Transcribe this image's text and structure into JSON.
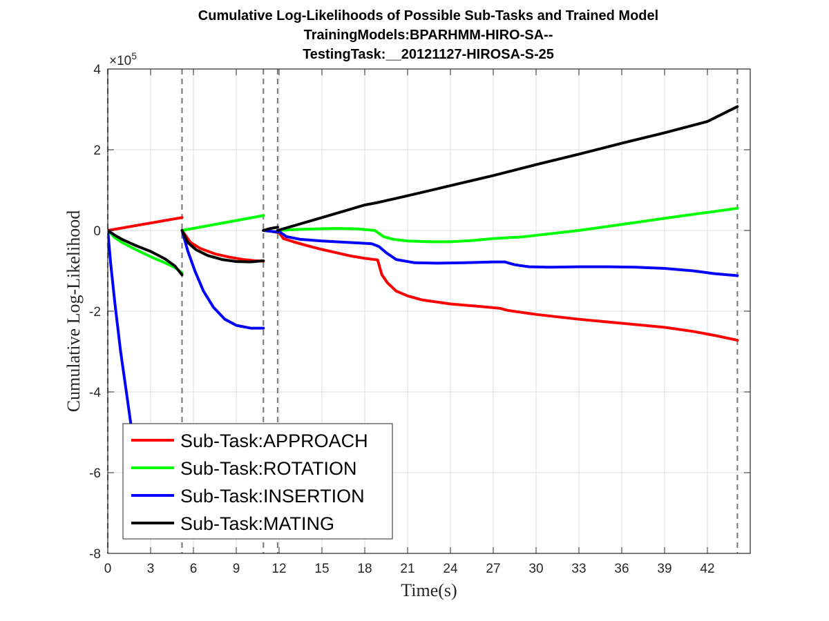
{
  "chart_data": {
    "type": "line",
    "title_lines": [
      "Cumulative Log-Likelihoods of Possible Sub-Tasks and Trained Model",
      "TrainingModels:BPARHMM-HIRO-SA--",
      "TestingTask:__20121127-HIROSA-S-25"
    ],
    "xlabel": "Time(s)",
    "ylabel": "Cumulative Log-Likelihood",
    "y_exponent_label": "×10",
    "y_exponent_power": "5",
    "xlim": [
      0,
      45
    ],
    "ylim": [
      -8,
      4
    ],
    "x_ticks": [
      0,
      3,
      6,
      9,
      12,
      15,
      18,
      21,
      24,
      27,
      30,
      33,
      36,
      39,
      42
    ],
    "x_tick_labels": [
      "0",
      "3",
      "6",
      "9",
      "12",
      "15",
      "18",
      "21",
      "24",
      "27",
      "30",
      "33",
      "36",
      "39",
      "42"
    ],
    "y_ticks": [
      -8,
      -6,
      -4,
      -2,
      0,
      2,
      4
    ],
    "y_tick_labels": [
      "-8",
      "-6",
      "-4",
      "-2",
      "0",
      "2",
      "4"
    ],
    "grid": true,
    "legend_placement": "bottom-left",
    "segment_boundaries": [
      0,
      5.2,
      10.9,
      11.9,
      44.1
    ],
    "series": [
      {
        "name": "Sub-Task:APPROACH",
        "color": "#ff0000",
        "segments": [
          [
            [
              0,
              0
            ],
            [
              5.2,
              0.32
            ]
          ],
          [
            [
              5.2,
              0
            ],
            [
              5.8,
              -0.3
            ],
            [
              6.5,
              -0.45
            ],
            [
              7.5,
              -0.58
            ],
            [
              8.5,
              -0.66
            ],
            [
              9.5,
              -0.72
            ],
            [
              10.3,
              -0.75
            ],
            [
              10.9,
              -0.76
            ]
          ],
          [
            [
              10.9,
              0
            ],
            [
              11.4,
              -0.02
            ],
            [
              11.9,
              -0.05
            ]
          ],
          [
            [
              11.9,
              0
            ],
            [
              12.3,
              -0.2
            ],
            [
              13,
              -0.28
            ],
            [
              14,
              -0.38
            ],
            [
              15,
              -0.47
            ],
            [
              16,
              -0.55
            ],
            [
              17,
              -0.63
            ],
            [
              18,
              -0.69
            ],
            [
              18.9,
              -0.73
            ],
            [
              19.2,
              -1.1
            ],
            [
              19.6,
              -1.3
            ],
            [
              20.2,
              -1.5
            ],
            [
              21,
              -1.62
            ],
            [
              22,
              -1.72
            ],
            [
              24,
              -1.82
            ],
            [
              26,
              -1.88
            ],
            [
              27.5,
              -1.93
            ],
            [
              28,
              -1.98
            ],
            [
              30,
              -2.08
            ],
            [
              33,
              -2.2
            ],
            [
              36,
              -2.3
            ],
            [
              39,
              -2.4
            ],
            [
              41,
              -2.5
            ],
            [
              42.5,
              -2.6
            ],
            [
              44.1,
              -2.72
            ]
          ]
        ]
      },
      {
        "name": "Sub-Task:ROTATION",
        "color": "#00ff00",
        "segments": [
          [
            [
              0,
              0
            ],
            [
              0.5,
              -0.18
            ],
            [
              1,
              -0.3
            ],
            [
              2,
              -0.48
            ],
            [
              3,
              -0.65
            ],
            [
              4,
              -0.8
            ],
            [
              4.7,
              -0.92
            ],
            [
              5.2,
              -1.05
            ]
          ],
          [
            [
              5.2,
              0
            ],
            [
              10.9,
              0.37
            ]
          ],
          [
            [
              10.9,
              0
            ],
            [
              11.4,
              -0.02
            ],
            [
              11.9,
              -0.04
            ]
          ],
          [
            [
              11.9,
              0
            ],
            [
              13,
              0.02
            ],
            [
              14.5,
              0.04
            ],
            [
              16,
              0.05
            ],
            [
              17.5,
              0.04
            ],
            [
              18.7,
              0.0
            ],
            [
              19.3,
              -0.15
            ],
            [
              20,
              -0.22
            ],
            [
              21,
              -0.26
            ],
            [
              22.5,
              -0.28
            ],
            [
              24,
              -0.28
            ],
            [
              25.5,
              -0.25
            ],
            [
              27,
              -0.2
            ],
            [
              28,
              -0.18
            ],
            [
              29,
              -0.16
            ],
            [
              31,
              -0.08
            ],
            [
              33,
              0.0
            ],
            [
              35,
              0.1
            ],
            [
              37,
              0.2
            ],
            [
              39,
              0.3
            ],
            [
              41,
              0.4
            ],
            [
              42.5,
              0.47
            ],
            [
              44.1,
              0.55
            ]
          ]
        ]
      },
      {
        "name": "Sub-Task:INSERTION",
        "color": "#0000ff",
        "segments": [
          [
            [
              0,
              0
            ],
            [
              0.2,
              -0.8
            ],
            [
              0.5,
              -1.8
            ],
            [
              0.9,
              -3.0
            ],
            [
              1.3,
              -4.0
            ],
            [
              1.7,
              -5.0
            ],
            [
              2.1,
              -6.0
            ],
            [
              2.4,
              -6.7
            ]
          ],
          [
            [
              5.2,
              0
            ],
            [
              5.6,
              -0.5
            ],
            [
              6.1,
              -1.0
            ],
            [
              6.7,
              -1.5
            ],
            [
              7.4,
              -1.9
            ],
            [
              8.2,
              -2.2
            ],
            [
              9,
              -2.35
            ],
            [
              10,
              -2.42
            ],
            [
              10.9,
              -2.42
            ]
          ],
          [
            [
              10.9,
              0
            ],
            [
              11.4,
              -0.02
            ],
            [
              11.9,
              -0.04
            ]
          ],
          [
            [
              11.9,
              0
            ],
            [
              12.5,
              -0.15
            ],
            [
              13.5,
              -0.22
            ],
            [
              15,
              -0.26
            ],
            [
              17,
              -0.3
            ],
            [
              18.5,
              -0.33
            ],
            [
              19,
              -0.4
            ],
            [
              19.5,
              -0.55
            ],
            [
              20.2,
              -0.72
            ],
            [
              21.5,
              -0.8
            ],
            [
              23,
              -0.81
            ],
            [
              25,
              -0.8
            ],
            [
              27,
              -0.78
            ],
            [
              27.8,
              -0.78
            ],
            [
              28.5,
              -0.85
            ],
            [
              29.5,
              -0.9
            ],
            [
              31,
              -0.91
            ],
            [
              33,
              -0.9
            ],
            [
              35,
              -0.9
            ],
            [
              37,
              -0.91
            ],
            [
              39,
              -0.94
            ],
            [
              41,
              -1.0
            ],
            [
              42.5,
              -1.07
            ],
            [
              44.1,
              -1.12
            ]
          ]
        ]
      },
      {
        "name": "Sub-Task:MATING",
        "color": "#000000",
        "segments": [
          [
            [
              0,
              0
            ],
            [
              0.5,
              -0.12
            ],
            [
              1,
              -0.22
            ],
            [
              2,
              -0.38
            ],
            [
              3,
              -0.52
            ],
            [
              4,
              -0.7
            ],
            [
              4.7,
              -0.88
            ],
            [
              5.2,
              -1.1
            ]
          ],
          [
            [
              5.2,
              0
            ],
            [
              5.6,
              -0.3
            ],
            [
              6.2,
              -0.48
            ],
            [
              7,
              -0.62
            ],
            [
              8,
              -0.72
            ],
            [
              9,
              -0.77
            ],
            [
              10,
              -0.78
            ],
            [
              10.9,
              -0.75
            ]
          ],
          [
            [
              10.9,
              0
            ],
            [
              11.4,
              0.05
            ],
            [
              11.9,
              0.08
            ]
          ],
          [
            [
              11.9,
              0
            ],
            [
              15,
              0.32
            ],
            [
              18,
              0.63
            ],
            [
              19,
              0.7
            ],
            [
              21,
              0.86
            ],
            [
              24,
              1.11
            ],
            [
              27,
              1.36
            ],
            [
              30,
              1.63
            ],
            [
              33,
              1.89
            ],
            [
              36,
              2.16
            ],
            [
              39,
              2.42
            ],
            [
              42,
              2.7
            ],
            [
              44.1,
              3.07
            ]
          ]
        ]
      }
    ]
  }
}
